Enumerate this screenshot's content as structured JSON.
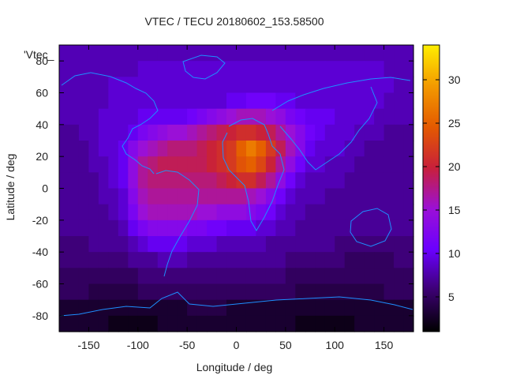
{
  "chart_data": {
    "type": "heatmap",
    "title": "VTEC / TECU 20180602_153.58500",
    "xlabel": "Longitude / deg",
    "ylabel": "Latitude / deg",
    "xlim": [
      -180,
      180
    ],
    "ylim": [
      -90,
      90
    ],
    "x_ticks": [
      -150,
      -100,
      -50,
      0,
      50,
      100,
      150
    ],
    "y_ticks": [
      -80,
      -60,
      -40,
      -20,
      0,
      20,
      40,
      60,
      80
    ],
    "colorbar": {
      "label": "",
      "range": [
        1,
        34
      ],
      "ticks": [
        5,
        10,
        15,
        20,
        25,
        30
      ]
    },
    "colormap": [
      "#000000",
      "#3b0070",
      "#6a00ff",
      "#9b10d6",
      "#c8203a",
      "#e45a00",
      "#f39a00",
      "#ffee00"
    ],
    "overlay_label": "'Vtec_",
    "grid_x": [
      -175,
      -165,
      -155,
      -145,
      -135,
      -125,
      -115,
      -105,
      -95,
      -85,
      -75,
      -65,
      -55,
      -45,
      -35,
      -25,
      -15,
      -5,
      5,
      15,
      25,
      35,
      45,
      55,
      65,
      75,
      85,
      95,
      105,
      115,
      125,
      135,
      145,
      155,
      165,
      175
    ],
    "grid_y": [
      85,
      75,
      65,
      55,
      45,
      35,
      25,
      15,
      5,
      -5,
      -15,
      -25,
      -35,
      -45,
      -55,
      -65,
      -75,
      -85
    ],
    "values": [
      [
        8,
        8,
        8,
        8,
        8,
        8,
        8,
        8,
        8,
        8,
        8,
        8,
        8,
        8,
        8,
        8,
        8,
        8,
        8,
        8,
        8,
        8,
        8,
        8,
        8,
        8,
        8,
        8,
        8,
        8,
        8,
        8,
        8,
        8,
        8,
        8
      ],
      [
        8,
        8,
        8,
        8,
        8,
        8,
        8,
        8,
        9,
        9,
        9,
        9,
        9,
        9,
        9,
        9,
        9,
        9,
        9,
        9,
        9,
        9,
        9,
        9,
        9,
        9,
        9,
        9,
        9,
        9,
        9,
        9,
        9,
        8,
        8,
        8
      ],
      [
        8,
        8,
        8,
        8,
        8,
        9,
        9,
        9,
        9,
        9,
        9,
        9,
        9,
        9,
        9,
        9,
        9,
        9,
        9,
        9,
        9,
        9,
        9,
        9,
        9,
        9,
        9,
        9,
        9,
        9,
        9,
        9,
        9,
        9,
        8,
        8
      ],
      [
        8,
        8,
        8,
        8,
        8,
        9,
        9,
        9,
        9,
        9,
        9,
        9,
        9,
        9,
        9,
        9,
        9,
        10,
        10,
        11,
        11,
        11,
        10,
        10,
        9,
        9,
        9,
        9,
        9,
        9,
        9,
        9,
        9,
        8,
        8,
        8
      ],
      [
        8,
        8,
        8,
        8,
        9,
        9,
        9,
        9,
        10,
        10,
        10,
        10,
        10,
        11,
        12,
        13,
        14,
        15,
        16,
        16,
        16,
        15,
        14,
        12,
        11,
        10,
        10,
        10,
        9,
        9,
        9,
        9,
        8,
        8,
        8,
        8
      ],
      [
        7,
        7,
        8,
        8,
        9,
        9,
        9,
        10,
        12,
        13,
        14,
        15,
        15,
        16,
        17,
        18,
        19,
        20,
        21,
        21,
        20,
        19,
        17,
        15,
        13,
        11,
        10,
        9,
        9,
        9,
        8,
        8,
        8,
        7,
        7,
        7
      ],
      [
        7,
        7,
        7,
        8,
        9,
        9,
        10,
        13,
        15,
        16,
        17,
        18,
        18,
        18,
        19,
        20,
        21,
        22,
        25,
        27,
        25,
        22,
        19,
        16,
        13,
        10,
        9,
        9,
        9,
        8,
        8,
        7,
        7,
        7,
        7,
        7
      ],
      [
        7,
        7,
        7,
        8,
        8,
        9,
        10,
        14,
        17,
        18,
        19,
        19,
        19,
        19,
        19,
        20,
        21,
        22,
        24,
        25,
        23,
        20,
        17,
        14,
        11,
        9,
        9,
        8,
        8,
        8,
        7,
        7,
        7,
        7,
        7,
        7
      ],
      [
        7,
        7,
        7,
        7,
        8,
        9,
        10,
        14,
        17,
        18,
        18,
        18,
        18,
        18,
        18,
        18,
        19,
        20,
        21,
        21,
        19,
        17,
        14,
        11,
        9,
        8,
        8,
        8,
        8,
        7,
        7,
        7,
        7,
        7,
        7,
        7
      ],
      [
        7,
        7,
        7,
        7,
        8,
        8,
        9,
        13,
        16,
        17,
        17,
        17,
        17,
        17,
        17,
        17,
        17,
        17,
        17,
        16,
        15,
        13,
        11,
        9,
        8,
        8,
        8,
        7,
        7,
        7,
        7,
        7,
        7,
        7,
        7,
        7
      ],
      [
        7,
        7,
        7,
        7,
        7,
        8,
        9,
        12,
        15,
        16,
        16,
        16,
        16,
        16,
        15,
        15,
        14,
        14,
        14,
        13,
        12,
        11,
        9,
        8,
        8,
        7,
        7,
        7,
        7,
        7,
        7,
        7,
        7,
        7,
        7,
        7
      ],
      [
        7,
        7,
        7,
        7,
        7,
        7,
        8,
        10,
        12,
        13,
        13,
        13,
        13,
        12,
        12,
        11,
        11,
        10,
        10,
        10,
        9,
        9,
        8,
        8,
        7,
        7,
        7,
        7,
        7,
        7,
        7,
        7,
        7,
        7,
        7,
        7
      ],
      [
        6,
        6,
        6,
        7,
        7,
        7,
        7,
        8,
        9,
        10,
        10,
        10,
        10,
        9,
        9,
        9,
        8,
        8,
        8,
        8,
        8,
        7,
        7,
        7,
        7,
        7,
        7,
        7,
        6,
        6,
        6,
        6,
        6,
        6,
        6,
        6
      ],
      [
        6,
        6,
        6,
        6,
        6,
        6,
        6,
        7,
        7,
        7,
        8,
        8,
        8,
        7,
        7,
        7,
        7,
        7,
        7,
        7,
        7,
        7,
        7,
        6,
        6,
        6,
        6,
        6,
        6,
        5,
        5,
        5,
        5,
        5,
        6,
        6
      ],
      [
        5,
        5,
        5,
        5,
        5,
        5,
        5,
        5,
        6,
        6,
        6,
        6,
        6,
        6,
        6,
        6,
        6,
        6,
        6,
        6,
        6,
        6,
        6,
        5,
        5,
        5,
        5,
        5,
        5,
        5,
        5,
        5,
        5,
        5,
        5,
        5
      ],
      [
        5,
        5,
        5,
        4,
        4,
        4,
        4,
        4,
        5,
        5,
        5,
        5,
        5,
        5,
        5,
        5,
        5,
        5,
        5,
        5,
        5,
        5,
        5,
        5,
        4,
        4,
        4,
        4,
        4,
        4,
        4,
        4,
        4,
        5,
        5,
        5
      ],
      [
        3,
        3,
        3,
        3,
        3,
        3,
        3,
        3,
        3,
        3,
        3,
        3,
        3,
        4,
        4,
        4,
        4,
        3,
        3,
        3,
        3,
        3,
        3,
        3,
        3,
        3,
        3,
        3,
        3,
        3,
        3,
        3,
        3,
        3,
        3,
        3
      ],
      [
        3,
        3,
        3,
        3,
        3,
        2,
        2,
        2,
        2,
        2,
        3,
        3,
        3,
        3,
        3,
        3,
        3,
        3,
        3,
        3,
        3,
        3,
        3,
        3,
        2,
        2,
        2,
        2,
        2,
        2,
        3,
        3,
        3,
        3,
        3,
        3
      ]
    ]
  }
}
